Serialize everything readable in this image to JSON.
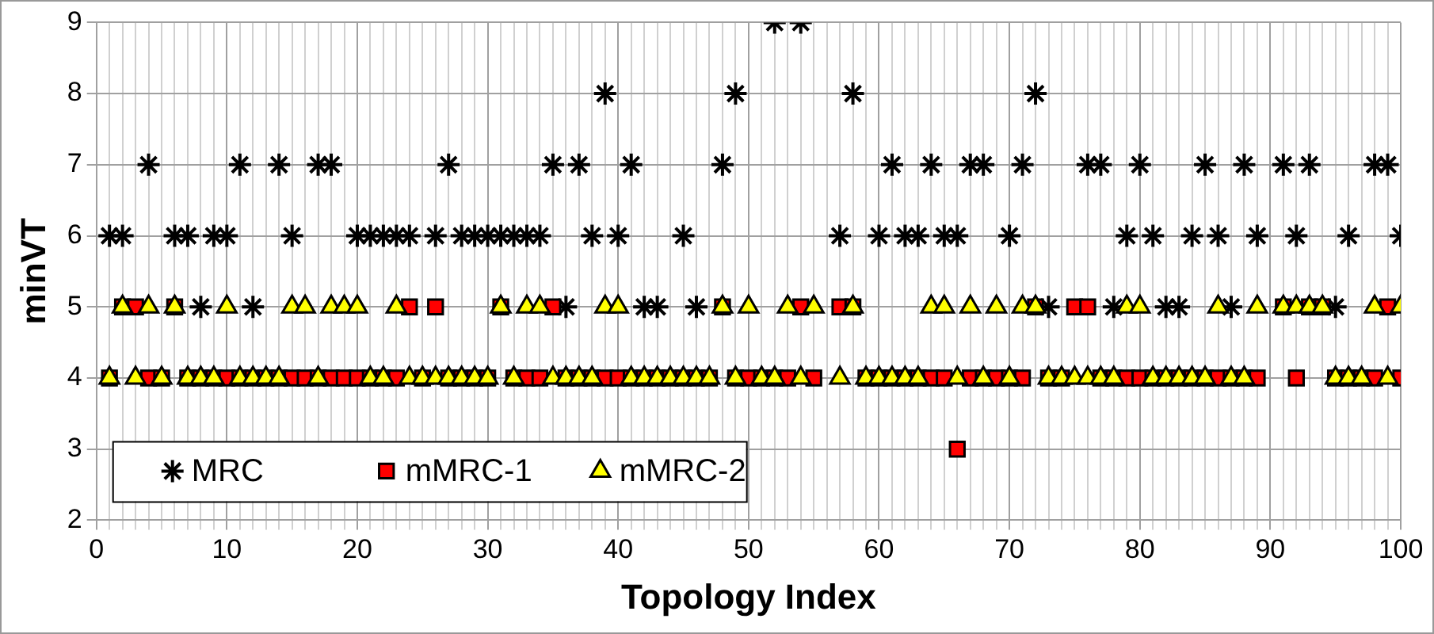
{
  "chart_data": {
    "type": "scatter",
    "xlabel": "Topology Index",
    "ylabel": "minVT",
    "x": [
      1,
      2,
      3,
      4,
      5,
      6,
      7,
      8,
      9,
      10,
      11,
      12,
      13,
      14,
      15,
      16,
      17,
      18,
      19,
      20,
      21,
      22,
      23,
      24,
      25,
      26,
      27,
      28,
      29,
      30,
      31,
      32,
      33,
      34,
      35,
      36,
      37,
      38,
      39,
      40,
      41,
      42,
      43,
      44,
      45,
      46,
      47,
      48,
      49,
      50,
      51,
      52,
      53,
      54,
      55,
      56,
      57,
      58,
      59,
      60,
      61,
      62,
      63,
      64,
      65,
      66,
      67,
      68,
      69,
      70,
      71,
      72,
      73,
      74,
      75,
      76,
      77,
      78,
      79,
      80,
      81,
      82,
      83,
      84,
      85,
      86,
      87,
      88,
      89,
      90,
      91,
      92,
      93,
      94,
      95,
      96,
      97,
      98,
      99,
      100
    ],
    "series": [
      {
        "name": "MRC",
        "color": "#000000",
        "marker": "cross",
        "values": [
          6,
          6,
          null,
          7,
          null,
          6,
          6,
          5,
          6,
          6,
          7,
          5,
          null,
          7,
          6,
          null,
          7,
          7,
          null,
          6,
          6,
          6,
          6,
          6,
          null,
          6,
          7,
          6,
          6,
          6,
          6,
          6,
          6,
          6,
          7,
          5,
          7,
          6,
          8,
          6,
          7,
          5,
          5,
          null,
          6,
          5,
          null,
          7,
          8,
          null,
          null,
          9,
          null,
          9,
          null,
          null,
          6,
          8,
          null,
          6,
          7,
          6,
          6,
          7,
          6,
          6,
          7,
          7,
          null,
          6,
          7,
          8,
          5,
          null,
          null,
          7,
          7,
          5,
          6,
          7,
          6,
          5,
          5,
          6,
          7,
          6,
          5,
          7,
          6,
          null,
          7,
          6,
          7,
          null,
          5,
          6,
          null,
          7,
          7,
          6
        ]
      },
      {
        "name": "mMRC-1",
        "color": "#ff0000",
        "marker": "square",
        "values": [
          4,
          5,
          5,
          4,
          4,
          5,
          4,
          4,
          4,
          4,
          4,
          4,
          4,
          4,
          4,
          4,
          4,
          4,
          4,
          4,
          4,
          4,
          4,
          5,
          4,
          5,
          4,
          4,
          4,
          4,
          5,
          4,
          4,
          4,
          5,
          4,
          4,
          4,
          4,
          4,
          4,
          4,
          4,
          4,
          4,
          4,
          4,
          5,
          4,
          4,
          4,
          4,
          4,
          5,
          4,
          null,
          5,
          5,
          4,
          4,
          4,
          4,
          4,
          4,
          4,
          3,
          4,
          4,
          4,
          4,
          4,
          5,
          4,
          4,
          5,
          5,
          4,
          4,
          4,
          4,
          4,
          4,
          4,
          4,
          4,
          4,
          4,
          4,
          4,
          null,
          5,
          4,
          5,
          5,
          4,
          4,
          4,
          4,
          5,
          4
        ]
      },
      {
        "name": "mMRC-2",
        "color": "#ffff00",
        "marker": "triangle",
        "values": [
          4,
          5,
          4,
          5,
          4,
          5,
          4,
          4,
          4,
          5,
          4,
          4,
          4,
          4,
          5,
          5,
          4,
          5,
          5,
          5,
          4,
          4,
          5,
          4,
          4,
          4,
          4,
          4,
          4,
          4,
          5,
          4,
          5,
          5,
          4,
          4,
          4,
          4,
          5,
          5,
          4,
          4,
          4,
          4,
          4,
          4,
          4,
          5,
          4,
          5,
          4,
          4,
          5,
          4,
          5,
          null,
          4,
          5,
          4,
          4,
          4,
          4,
          4,
          5,
          5,
          4,
          5,
          4,
          5,
          4,
          5,
          5,
          4,
          4,
          4,
          4,
          4,
          4,
          5,
          5,
          4,
          4,
          4,
          4,
          4,
          5,
          4,
          4,
          5,
          null,
          5,
          5,
          5,
          5,
          4,
          4,
          4,
          5,
          4,
          5
        ]
      }
    ],
    "xlim": [
      0,
      100
    ],
    "xticks": [
      0,
      {
        "value": 1,
        "label": null
      },
      {
        "value": 2,
        "label": null
      },
      {
        "value": 3,
        "label": null
      },
      {
        "value": 4,
        "label": null
      },
      {
        "value": 5,
        "label": null
      },
      {
        "value": 6,
        "label": null
      },
      {
        "value": 7,
        "label": null
      },
      {
        "value": 8,
        "label": null
      },
      {
        "value": 9,
        "label": null
      },
      10,
      {
        "value": 11,
        "label": null
      },
      {
        "value": 12,
        "label": null
      },
      {
        "value": 13,
        "label": null
      },
      {
        "value": 14,
        "label": null
      },
      {
        "value": 15,
        "label": null
      },
      {
        "value": 16,
        "label": null
      },
      {
        "value": 17,
        "label": null
      },
      {
        "value": 18,
        "label": null
      },
      {
        "value": 19,
        "label": null
      },
      20,
      {
        "value": 21,
        "label": null
      },
      {
        "value": 22,
        "label": null
      },
      {
        "value": 23,
        "label": null
      },
      {
        "value": 24,
        "label": null
      },
      {
        "value": 25,
        "label": null
      },
      {
        "value": 26,
        "label": null
      },
      {
        "value": 27,
        "label": null
      },
      {
        "value": 28,
        "label": null
      },
      {
        "value": 29,
        "label": null
      },
      30,
      {
        "value": 31,
        "label": null
      },
      {
        "value": 32,
        "label": null
      },
      {
        "value": 33,
        "label": null
      },
      {
        "value": 34,
        "label": null
      },
      {
        "value": 35,
        "label": null
      },
      {
        "value": 36,
        "label": null
      },
      {
        "value": 37,
        "label": null
      },
      {
        "value": 38,
        "label": null
      },
      {
        "value": 39,
        "label": null
      },
      40,
      {
        "value": 41,
        "label": null
      },
      {
        "value": 42,
        "label": null
      },
      {
        "value": 43,
        "label": null
      },
      {
        "value": 44,
        "label": null
      },
      {
        "value": 45,
        "label": null
      },
      {
        "value": 46,
        "label": null
      },
      {
        "value": 47,
        "label": null
      },
      {
        "value": 48,
        "label": null
      },
      {
        "value": 49,
        "label": null
      },
      50,
      {
        "value": 51,
        "label": null
      },
      {
        "value": 52,
        "label": null
      },
      {
        "value": 53,
        "label": null
      },
      {
        "value": 54,
        "label": null
      },
      {
        "value": 55,
        "label": null
      },
      {
        "value": 56,
        "label": null
      },
      {
        "value": 57,
        "label": null
      },
      {
        "value": 58,
        "label": null
      },
      {
        "value": 59,
        "label": null
      },
      60,
      {
        "value": 61,
        "label": null
      },
      {
        "value": 62,
        "label": null
      },
      {
        "value": 63,
        "label": null
      },
      {
        "value": 64,
        "label": null
      },
      {
        "value": 65,
        "label": null
      },
      {
        "value": 66,
        "label": null
      },
      {
        "value": 67,
        "label": null
      },
      {
        "value": 68,
        "label": null
      },
      {
        "value": 69,
        "label": null
      },
      70,
      {
        "value": 71,
        "label": null
      },
      {
        "value": 72,
        "label": null
      },
      {
        "value": 73,
        "label": null
      },
      {
        "value": 74,
        "label": null
      },
      {
        "value": 75,
        "label": null
      },
      {
        "value": 76,
        "label": null
      },
      {
        "value": 77,
        "label": null
      },
      {
        "value": 78,
        "label": null
      },
      {
        "value": 79,
        "label": null
      },
      80,
      {
        "value": 81,
        "label": null
      },
      {
        "value": 82,
        "label": null
      },
      {
        "value": 83,
        "label": null
      },
      {
        "value": 84,
        "label": null
      },
      {
        "value": 85,
        "label": null
      },
      {
        "value": 86,
        "label": null
      },
      {
        "value": 87,
        "label": null
      },
      {
        "value": 88,
        "label": null
      },
      {
        "value": 89,
        "label": null
      },
      90,
      {
        "value": 91,
        "label": null
      },
      {
        "value": 92,
        "label": null
      },
      {
        "value": 93,
        "label": null
      },
      {
        "value": 94,
        "label": null
      },
      {
        "value": 95,
        "label": null
      },
      {
        "value": 96,
        "label": null
      },
      {
        "value": 97,
        "label": null
      },
      {
        "value": 98,
        "label": null
      },
      {
        "value": 99,
        "label": null
      },
      100
    ],
    "ylim": [
      2,
      9
    ],
    "yticks": [
      2,
      3,
      4,
      5,
      6,
      7,
      8,
      9
    ],
    "grid": true,
    "legend": "bottom left"
  }
}
